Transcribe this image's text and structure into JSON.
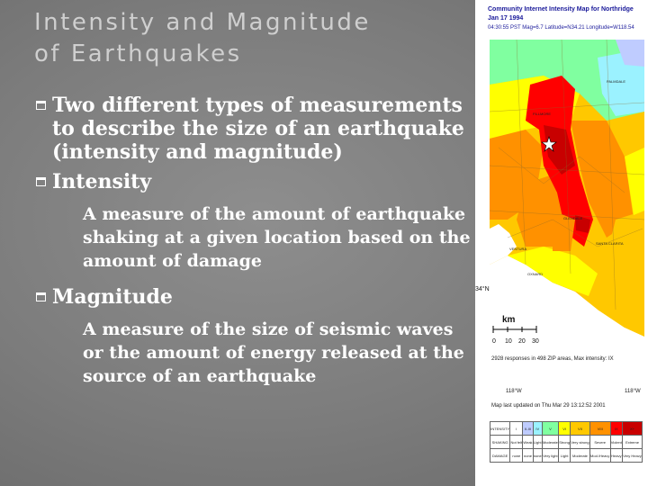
{
  "slide": {
    "title_line1": "Intensity and Magnitude",
    "title_line2": "of Earthquakes",
    "bullets": [
      {
        "text": "Two different types of measurements to describe the size of an earthquake (intensity and magnitude)"
      },
      {
        "text": "Intensity"
      },
      {
        "text": "Magnitude"
      }
    ],
    "sub": {
      "intensity": "A measure of the amount of earthquake shaking at a given location based on the amount of damage",
      "magnitude": "A measure of the size of seismic waves or the amount of energy released at the source of an earthquake"
    }
  },
  "map": {
    "title": "Community Internet Intensity Map for Northridge  Jan 17 1994",
    "subtitle": "04:30:55 PST Mag=6.7 Latitude=N34.21 Longitude=W118.54",
    "place_labels": [
      "PALMDALE",
      "FILLMORE",
      "VENTURA",
      "OXNARD",
      "GLENDALE",
      "SANTA CLARITA"
    ],
    "lat_label": "34°N",
    "scale_unit": "km",
    "scale_ticks": [
      "0",
      "10",
      "20",
      "30"
    ],
    "responses": "2928 responses in 498 ZIP areas, Max intensity: IX",
    "lon_labels": [
      "118°W",
      "118°W"
    ],
    "updated": "Map last updated on Thu Mar 29 13:12:52 2001",
    "legend_header": [
      "INTENSITY",
      "I",
      "II-III",
      "IV",
      "V",
      "VI",
      "VII",
      "VIII",
      "IX",
      "X+"
    ],
    "legend_row2": [
      "SHAKING",
      "Not felt",
      "Weak",
      "Light",
      "Moderate",
      "Strong",
      "Very strong",
      "Severe",
      "Violent",
      "Extreme"
    ],
    "legend_row3": [
      "DAMAGE",
      "none",
      "none",
      "none",
      "Very light",
      "Light",
      "Moderate",
      "Mod./Heavy",
      "Heavy",
      "Very Heavy"
    ],
    "legend_colors": [
      "#ffffff",
      "#ffffff",
      "#bfccff",
      "#9bf2ff",
      "#80ffa0",
      "#ffff00",
      "#ffc800",
      "#ff9100",
      "#ff0000",
      "#c80000"
    ]
  }
}
